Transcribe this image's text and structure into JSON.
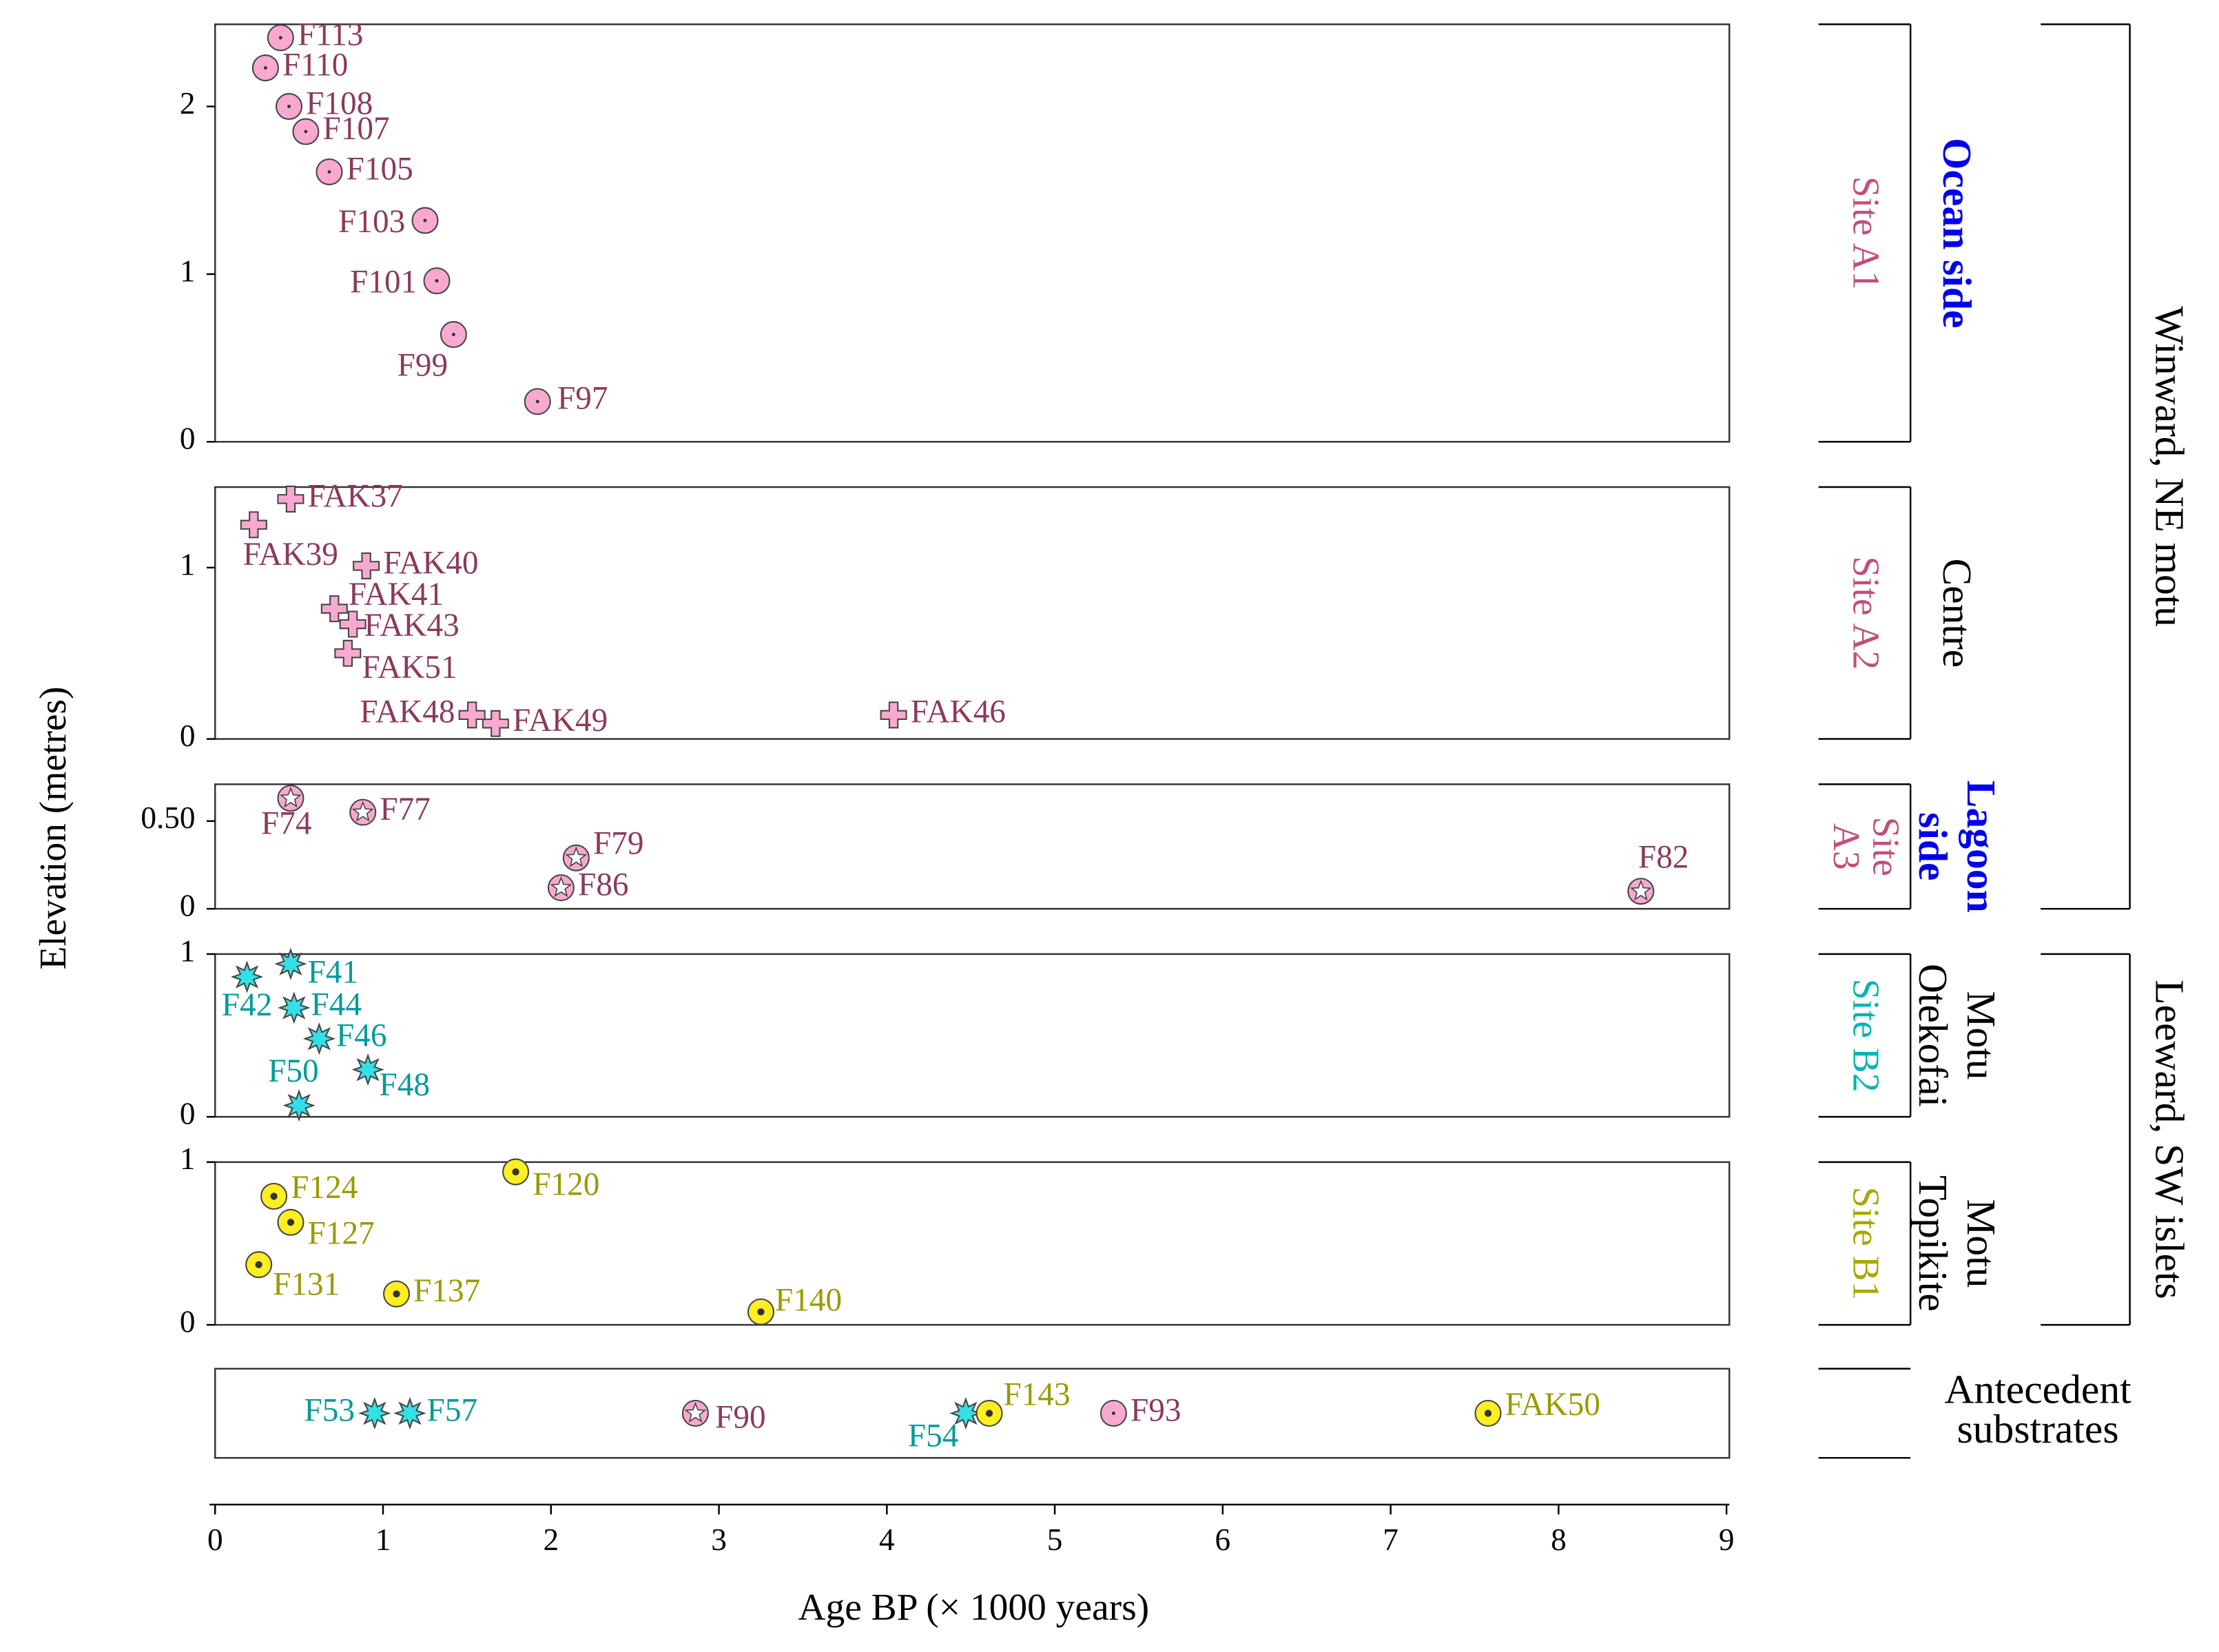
{
  "chart_data": {
    "type": "scatter",
    "xlabel": "Age BP (× 1000 years)",
    "ylabel": "Elevation (metres)",
    "xlim": [
      0,
      9
    ],
    "xticks": [
      0,
      1,
      2,
      3,
      4,
      5,
      6,
      7,
      8,
      9
    ],
    "groups": [
      {
        "label": "Winward, NE motu"
      },
      {
        "label": "Leeward, SW islets"
      }
    ],
    "panels": [
      {
        "site": [
          "Site A1"
        ],
        "site_color": "#c0507a",
        "zone": [
          "Ocean side"
        ],
        "zone_color": "#0000ee",
        "ylim": [
          0,
          2.49
        ],
        "yticks": [
          0,
          1,
          2
        ],
        "series": [
          {
            "marker": "dot-circle",
            "color": "#f9a8cf",
            "label_color": "#8b3a5c",
            "x": [
              0.39,
              0.3,
              0.44,
              0.54,
              0.68,
              1.25,
              1.32,
              1.42,
              1.92
            ],
            "values": [
              2.41,
              2.23,
              2.0,
              1.85,
              1.61,
              1.32,
              0.96,
              0.64,
              0.24
            ],
            "labels": [
              "F113",
              "F110",
              "F108",
              "F107",
              "F105",
              "F103",
              "F101",
              "F99",
              "F97"
            ]
          }
        ]
      },
      {
        "site": [
          "Site A2"
        ],
        "site_color": "#c0507a",
        "zone": [
          "Centre"
        ],
        "zone_color": "#000000",
        "ylim": [
          0,
          1.47
        ],
        "yticks": [
          0,
          1
        ],
        "series": [
          {
            "marker": "plus",
            "color": "#f9a8cf",
            "label_color": "#8b3a5c",
            "x": [
              0.45,
              0.23,
              0.9,
              0.71,
              0.82,
              0.79,
              1.53,
              1.67,
              4.04
            ],
            "values": [
              1.4,
              1.25,
              1.01,
              0.76,
              0.67,
              0.5,
              0.14,
              0.09,
              0.14
            ],
            "labels": [
              "FAK37",
              "FAK39",
              "FAK40",
              "FAK41",
              "FAK43",
              "FAK51",
              "FAK48",
              "FAK49",
              "FAK46"
            ]
          }
        ]
      },
      {
        "site": [
          "Site",
          "A3"
        ],
        "site_color": "#c0507a",
        "zone": [
          "Lagoon",
          "side"
        ],
        "zone_color": "#0000ee",
        "ylim": [
          0,
          0.71
        ],
        "yticks": [
          0,
          {
            "value": 0.5,
            "label": "0.50"
          }
        ],
        "series": [
          {
            "marker": "star-circle",
            "color": "#f9a8cf",
            "label_color": "#8b3a5c",
            "x": [
              0.45,
              0.88,
              2.15,
              2.06,
              8.49
            ],
            "values": [
              0.63,
              0.55,
              0.29,
              0.12,
              0.1
            ],
            "labels": [
              "F74",
              "F77",
              "F79",
              "F86",
              "F82"
            ]
          }
        ]
      },
      {
        "site": [
          "Site B2"
        ],
        "site_color": "#00b5b5",
        "zone": [
          "Motu",
          "Otekofai"
        ],
        "zone_color": "#000000",
        "ylim": [
          0,
          1
        ],
        "yticks": [
          0,
          1
        ],
        "series": [
          {
            "marker": "asterisk",
            "color": "#33e0e6",
            "label_color": "#009a9a",
            "x": [
              0.45,
              0.19,
              0.47,
              0.62,
              0.91,
              0.5
            ],
            "values": [
              0.94,
              0.86,
              0.67,
              0.48,
              0.29,
              0.07
            ],
            "labels": [
              "F41",
              "F42",
              "F44",
              "F46",
              "F48",
              "F50"
            ]
          }
        ]
      },
      {
        "site": [
          "Site B1"
        ],
        "site_color": "#a8a800",
        "zone": [
          "Motu",
          "Topikite"
        ],
        "zone_color": "#000000",
        "ylim": [
          0,
          1
        ],
        "yticks": [
          0,
          1
        ],
        "series": [
          {
            "marker": "flower",
            "color": "#ffee22",
            "label_color": "#9a9a00",
            "x": [
              1.79,
              0.35,
              0.45,
              0.26,
              1.08,
              3.25
            ],
            "values": [
              0.94,
              0.79,
              0.63,
              0.37,
              0.19,
              0.08
            ],
            "labels": [
              "F120",
              "F124",
              "F127",
              "F131",
              "F137",
              "F140"
            ]
          }
        ]
      },
      {
        "zone": [
          "Antecedent",
          "substrates"
        ],
        "zone_color": "#000000",
        "series": [
          {
            "marker": "asterisk",
            "color": "#33e0e6",
            "label_color": "#009a9a",
            "x": [
              0.95,
              1.16,
              4.47
            ],
            "labels": [
              "F53",
              "F57",
              "F54"
            ]
          },
          {
            "marker": "star-circle",
            "color": "#f9a8cf",
            "label_color": "#8b3a5c",
            "x": [
              2.86
            ],
            "labels": [
              "F90"
            ]
          },
          {
            "marker": "dot-circle",
            "color": "#f9a8cf",
            "label_color": "#8b3a5c",
            "x": [
              5.35
            ],
            "labels": [
              "F93"
            ]
          },
          {
            "marker": "flower",
            "color": "#ffee22",
            "label_color": "#9a9a00",
            "x": [
              4.61,
              7.58
            ],
            "labels": [
              "F143",
              "FAK50"
            ]
          }
        ]
      }
    ]
  }
}
